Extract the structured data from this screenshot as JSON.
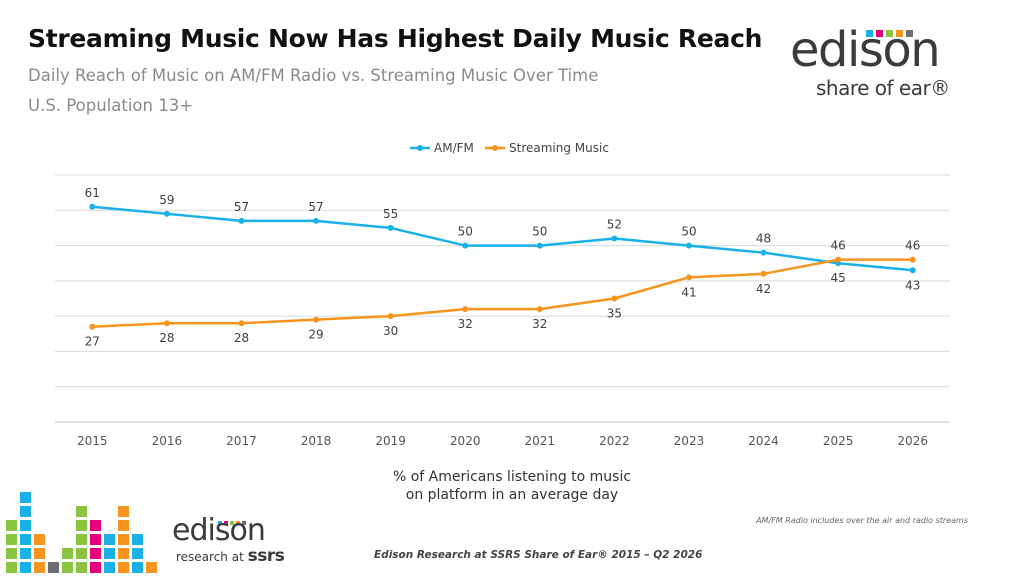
{
  "header": {
    "title": "Streaming Music Now Has Highest Daily Music Reach",
    "subtitle": "Daily Reach of Music on AM/FM Radio vs. Streaming Music Over Time",
    "population": "U.S. Population 13+"
  },
  "brand": {
    "word": "edison",
    "tagline": "share of ear®",
    "bottom_word": "edison",
    "bottom_tagline_prefix": "research at",
    "bottom_tagline_brand": "ssrs",
    "accent_colors": [
      "#1ab0e8",
      "#e3007a",
      "#8bc53f",
      "#f7941d",
      "#6d6e71"
    ]
  },
  "footer": {
    "axis_caption_line1": "% of Americans listening to music",
    "axis_caption_line2": "on platform in an average day",
    "footnote": "AM/FM Radio includes over the air and radio streams",
    "source": "Edison Research at SSRS Share of Ear® 2015 – Q2 2026"
  },
  "chart_data": {
    "type": "line",
    "categories": [
      "2015",
      "2016",
      "2017",
      "2018",
      "2019",
      "2020",
      "2021",
      "2022",
      "2023",
      "2024",
      "2025",
      "2026"
    ],
    "series": [
      {
        "name": "AM/FM",
        "color": "#1ab0e8",
        "values": [
          61,
          59,
          57,
          57,
          55,
          50,
          50,
          52,
          50,
          48,
          45,
          43
        ]
      },
      {
        "name": "Streaming Music",
        "color": "#f7941d",
        "values": [
          27,
          28,
          28,
          29,
          30,
          32,
          32,
          35,
          41,
          42,
          46,
          46
        ]
      }
    ],
    "ylim": [
      0,
      70
    ],
    "grid": true,
    "legend_position": "top-center"
  }
}
